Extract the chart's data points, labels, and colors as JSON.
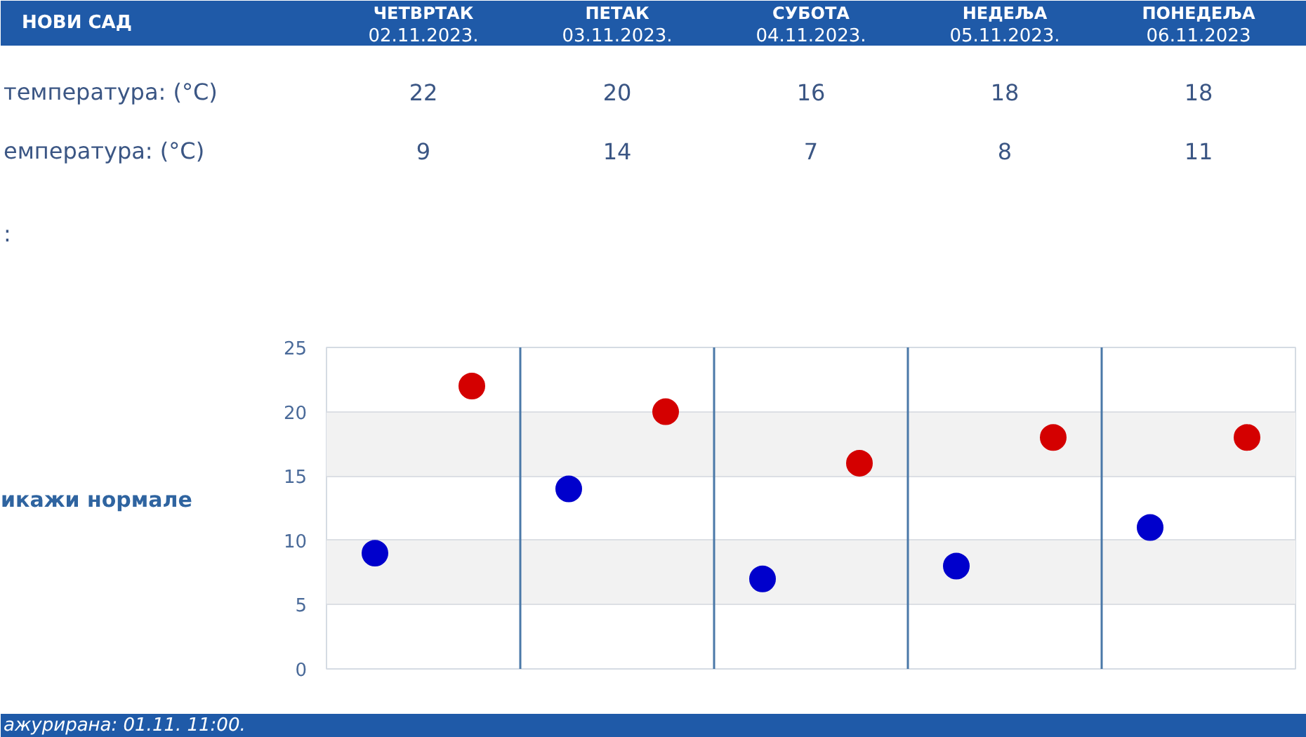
{
  "chart_data": {
    "type": "scatter",
    "title": "НОВИ САД",
    "categories": [
      null,
      null,
      null,
      null,
      null
    ],
    "series": [
      {
        "color": "#d40000",
        "values": [
          22,
          20,
          16,
          18,
          18
        ]
      },
      {
        "color": "#0000cc",
        "values": [
          9,
          14,
          7,
          8,
          11
        ]
      }
    ],
    "ylim": [
      0,
      25
    ],
    "yticks": [
      0,
      5,
      10,
      15,
      20,
      25
    ],
    "grid": true,
    "marker": "circle",
    "data_labels": true,
    "annotations": [
      "ЧЕТВРТАК\n02.11.2023.",
      "ПЕТАК\n03.11.2023.",
      "СУБОТА\n04.11.2023.",
      "НЕДЕЉА\n05.11.2023.",
      "ПОНЕДЕЉА\n06.11.2023",
      "температура: (°C)",
      "емпература: (°C)",
      ":",
      "икажи нормале",
      "ажурирана: 01.11. 11:00."
    ]
  }
}
